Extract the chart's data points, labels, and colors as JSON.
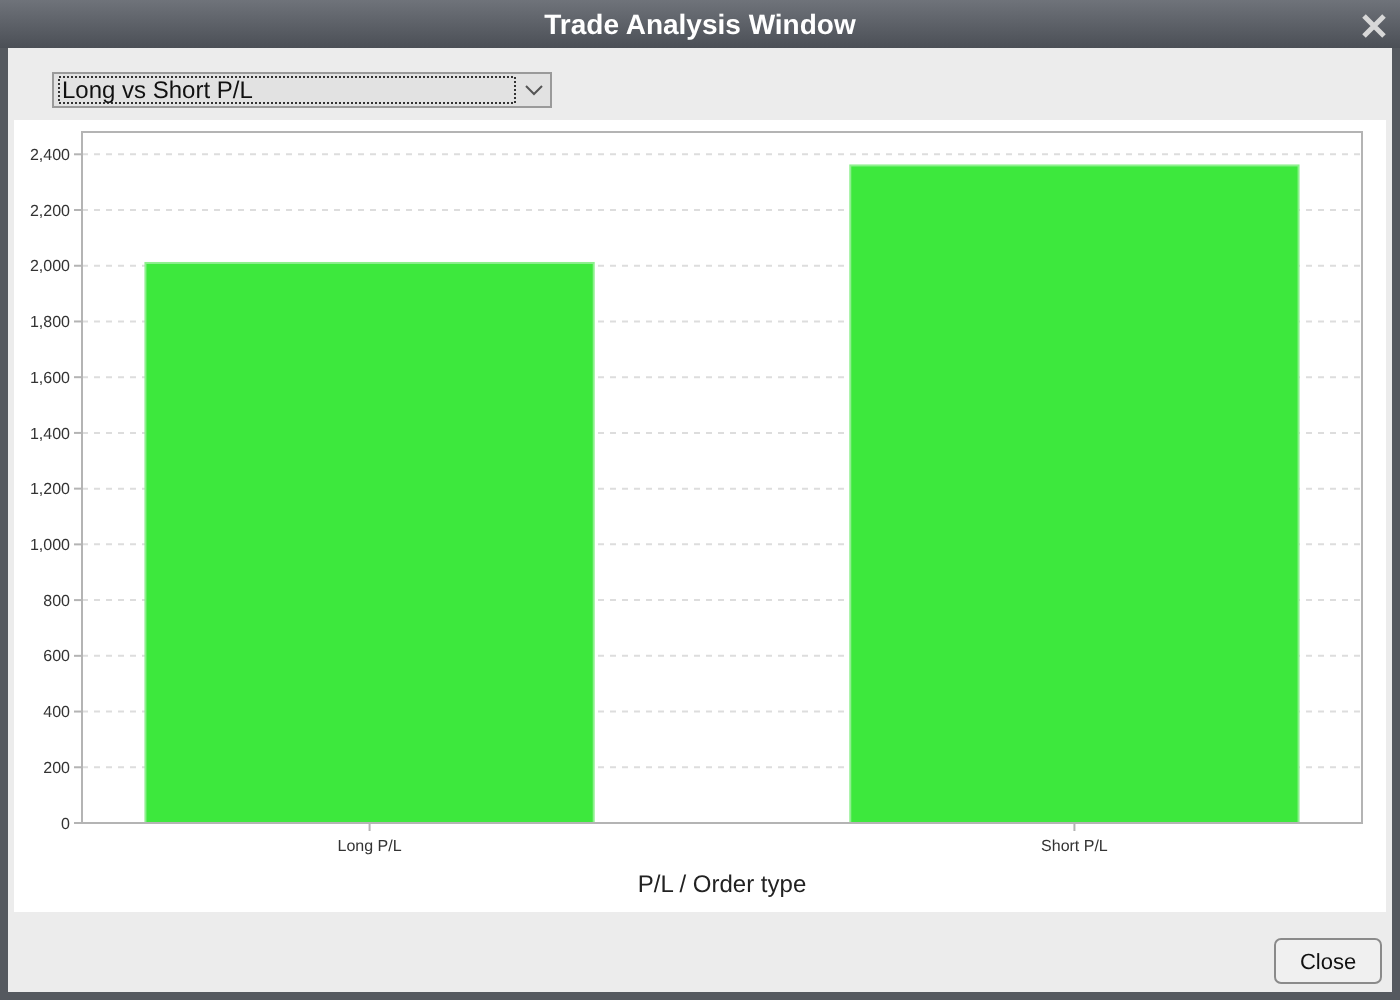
{
  "chart_data": {
    "type": "bar",
    "title": "Trade Analysis Window",
    "subtitle": "Long vs Short P/L",
    "xlabel": "P/L / Order type",
    "categories": [
      "Long P/L",
      "Short P/L"
    ],
    "values": [
      2010,
      2360
    ],
    "color": "#3de83d",
    "ylim": [
      0,
      2480
    ],
    "yticks": [
      0,
      {
        "value": 200,
        "label": "200"
      },
      {
        "value": 400,
        "label": "400"
      },
      {
        "value": 600,
        "label": "600"
      },
      {
        "value": 800,
        "label": "800"
      },
      {
        "value": 1000,
        "label": "1,000"
      },
      {
        "value": 1200,
        "label": "1,200"
      },
      {
        "value": 1400,
        "label": "1,400"
      },
      {
        "value": 1600,
        "label": "1,600"
      },
      {
        "value": 1800,
        "label": "1,800"
      },
      {
        "value": 2000,
        "label": "2,000"
      },
      {
        "value": 2200,
        "label": "2,200"
      },
      {
        "value": 2400,
        "label": "2,400"
      }
    ],
    "grid": "y",
    "annotations": [
      "Close"
    ]
  }
}
